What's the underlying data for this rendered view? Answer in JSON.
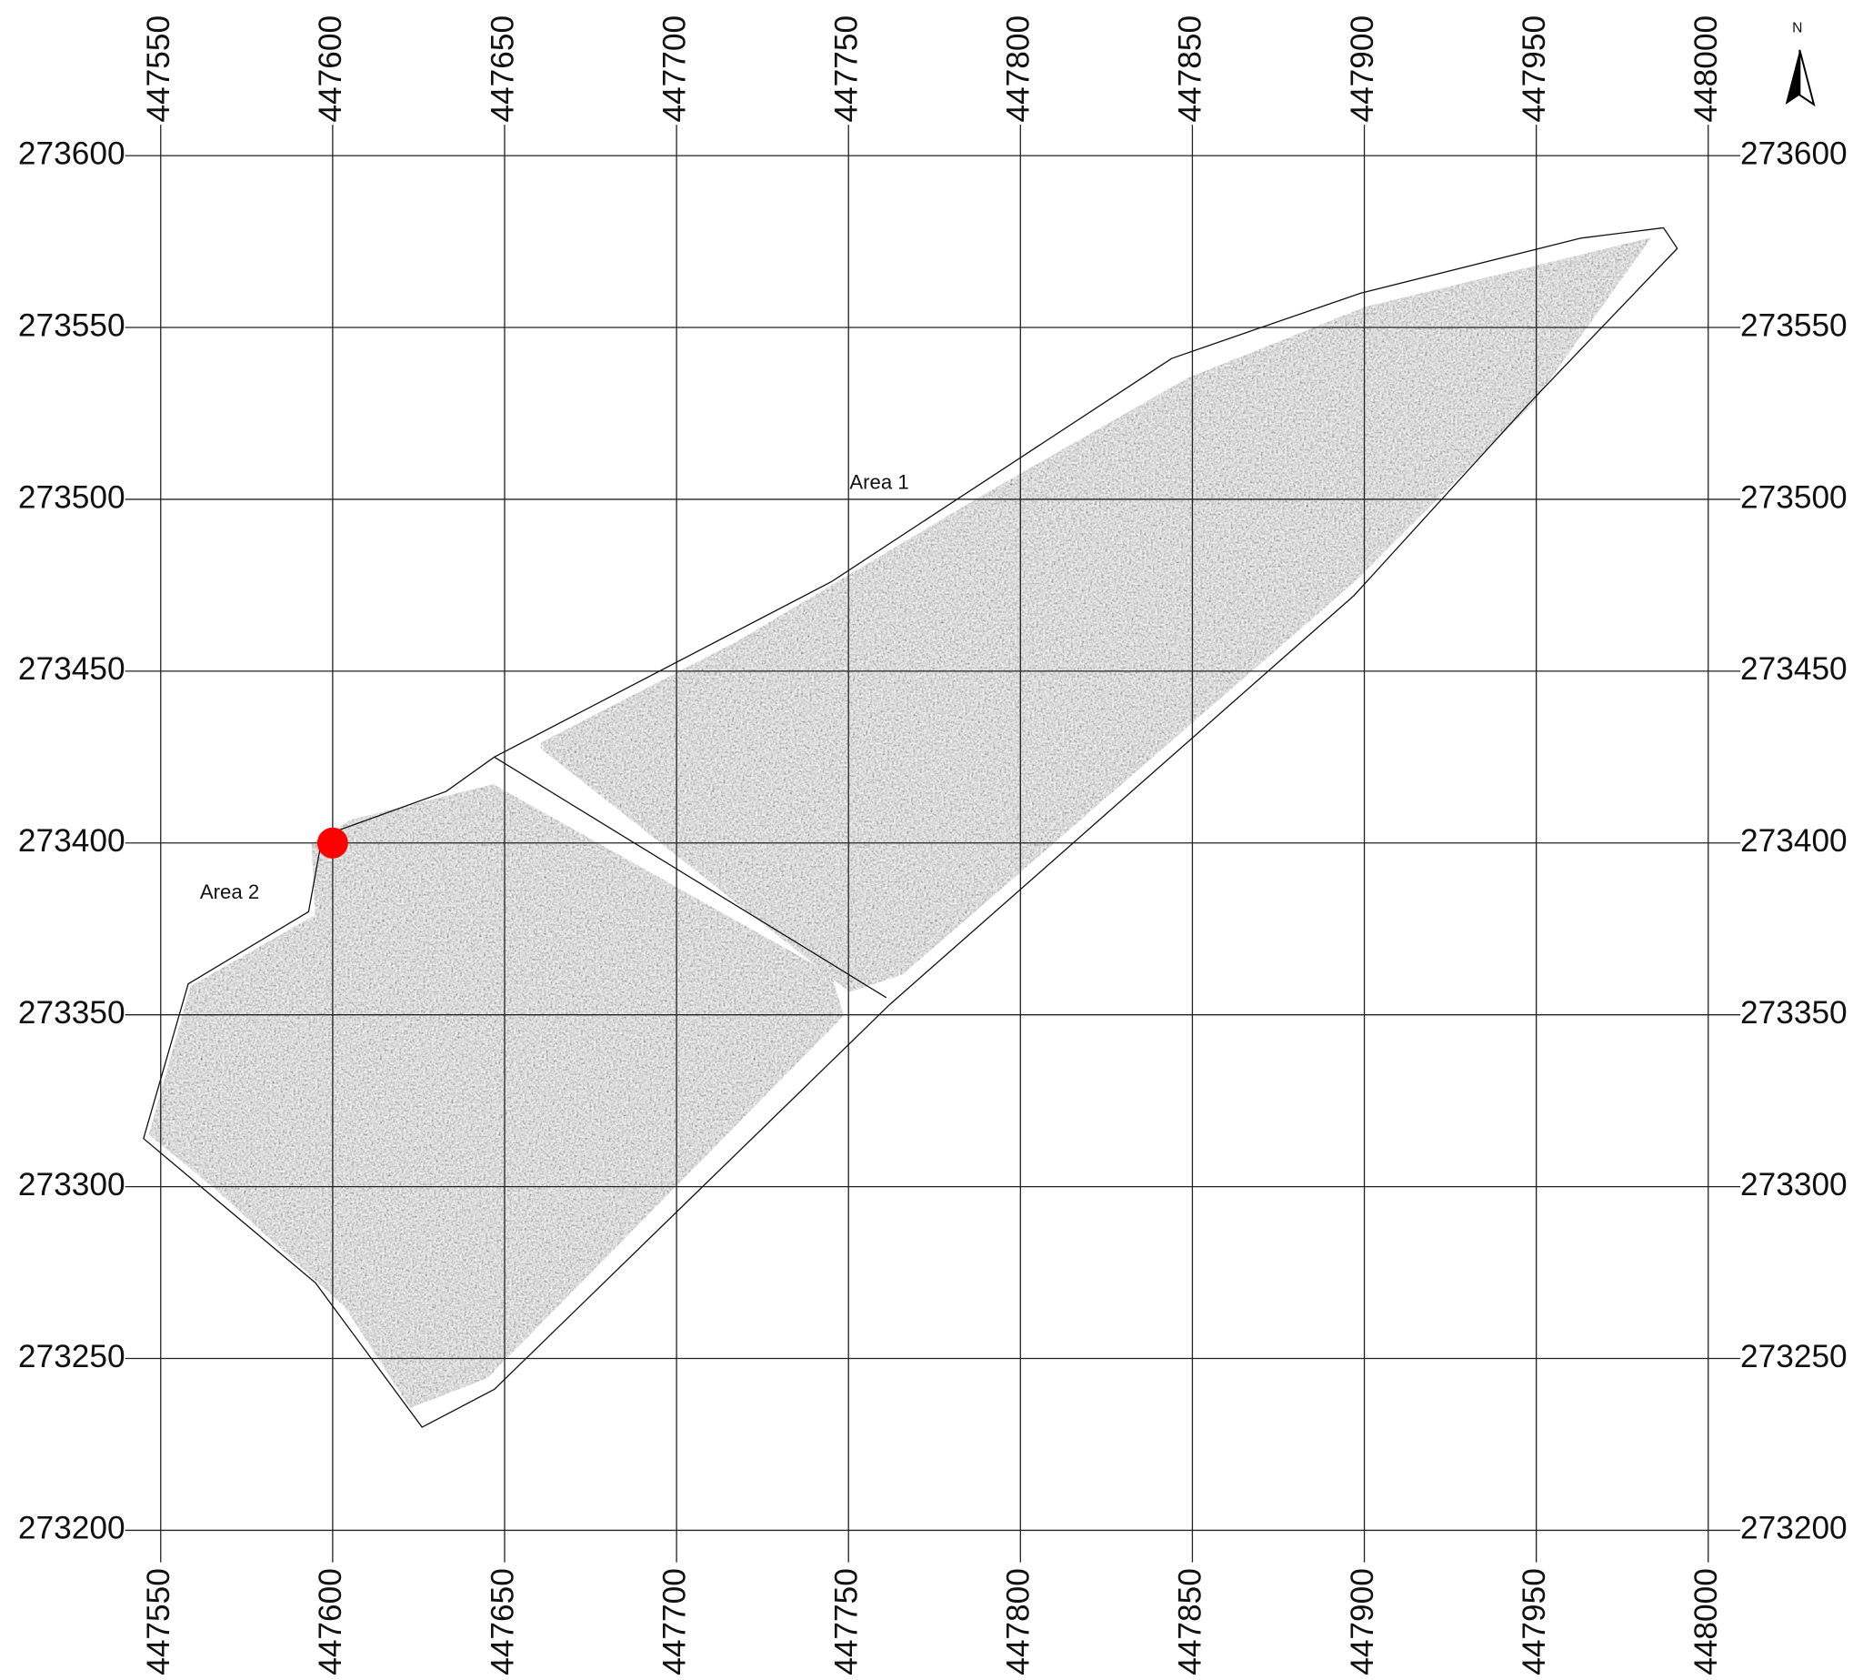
{
  "map": {
    "xlim": [
      447550,
      448000
    ],
    "ylim": [
      273200,
      273600
    ],
    "xticks": [
      447550,
      447600,
      447650,
      447700,
      447750,
      447800,
      447850,
      447900,
      447950,
      448000
    ],
    "yticks": [
      273200,
      273250,
      273300,
      273350,
      273400,
      273450,
      273500,
      273550,
      273600
    ],
    "north": "N",
    "areas": [
      "Area 1",
      "Area 2"
    ],
    "boundary": {
      "x": [
        447987,
        447991,
        447948,
        447897,
        447762,
        447647,
        447626,
        447595,
        447545,
        447558,
        447593,
        447597,
        447633,
        447647,
        447745,
        447844,
        447870,
        447899,
        447963,
        447987
      ],
      "y": [
        273579,
        273573,
        273528,
        273472,
        273353,
        273241,
        273230,
        273272,
        273314,
        273359,
        273380,
        273402,
        273415,
        273425,
        273476,
        273541,
        273550,
        273560,
        273576,
        273579
      ]
    },
    "divider": {
      "x": [
        447647,
        447761
      ],
      "y": [
        273425,
        273355
      ]
    },
    "marker": {
      "x": 447600,
      "y": 273400,
      "color": "#ff0000"
    }
  }
}
